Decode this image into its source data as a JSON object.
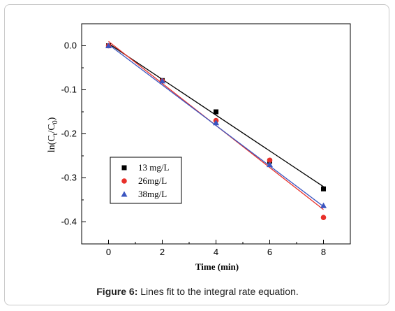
{
  "caption": {
    "label": "Figure 6:",
    "text": "Lines fit to the integral rate equation."
  },
  "chart_data": {
    "type": "scatter",
    "title": "",
    "xlabel": "Time (min)",
    "ylabel": "ln(Ct/C0)",
    "xlim": [
      -1,
      9
    ],
    "ylim": [
      -0.45,
      0.05
    ],
    "x_ticks": [
      "0",
      "2",
      "4",
      "6",
      "8"
    ],
    "y_ticks": [
      "0.0",
      "-0.1",
      "-0.2",
      "-0.3",
      "-0.4"
    ],
    "legend_position": "lower-left",
    "series": [
      {
        "name": "13 mg/L",
        "marker": "square",
        "color": "#000000",
        "x": [
          0,
          2,
          4,
          6,
          8
        ],
        "y": [
          0.0,
          -0.079,
          -0.15,
          -0.262,
          -0.325
        ],
        "fit": {
          "color": "#000000",
          "x": [
            0,
            8
          ],
          "y": [
            0.005,
            -0.32
          ]
        }
      },
      {
        "name": "26mg/L",
        "marker": "circle",
        "color": "#e8302a",
        "x": [
          0,
          2,
          4,
          6,
          8
        ],
        "y": [
          0.0,
          -0.08,
          -0.17,
          -0.26,
          -0.39
        ],
        "fit": {
          "color": "#e8302a",
          "x": [
            0,
            8
          ],
          "y": [
            0.01,
            -0.372
          ]
        }
      },
      {
        "name": "38mg/L",
        "marker": "triangle",
        "color": "#3b55c0",
        "x": [
          0,
          2,
          4,
          6,
          8
        ],
        "y": [
          0.0,
          -0.08,
          -0.175,
          -0.27,
          -0.363
        ],
        "fit": {
          "color": "#3b55c0",
          "x": [
            0,
            8
          ],
          "y": [
            0.003,
            -0.365
          ]
        }
      }
    ]
  }
}
